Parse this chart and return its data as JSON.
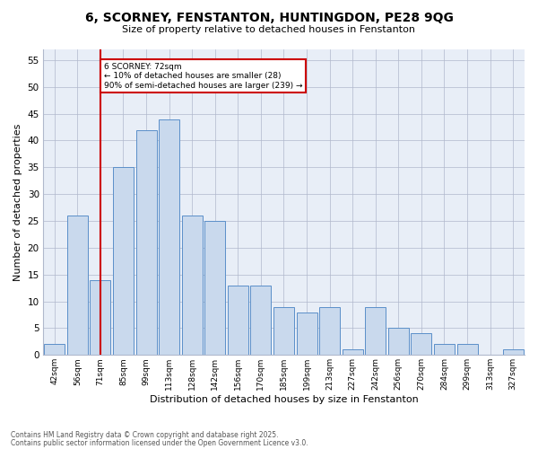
{
  "title_line1": "6, SCORNEY, FENSTANTON, HUNTINGDON, PE28 9QG",
  "title_line2": "Size of property relative to detached houses in Fenstanton",
  "xlabel": "Distribution of detached houses by size in Fenstanton",
  "ylabel": "Number of detached properties",
  "footer_line1": "Contains HM Land Registry data © Crown copyright and database right 2025.",
  "footer_line2": "Contains public sector information licensed under the Open Government Licence v3.0.",
  "annotation_title": "6 SCORNEY: 72sqm",
  "annotation_line2": "← 10% of detached houses are smaller (28)",
  "annotation_line3": "90% of semi-detached houses are larger (239) →",
  "bar_color": "#c9d9ed",
  "bar_edge_color": "#5b8fc9",
  "marker_line_color": "#cc0000",
  "annotation_box_color": "#cc0000",
  "plot_bg_color": "#e8eef7",
  "fig_bg_color": "#ffffff",
  "grid_color": "#b0b8cc",
  "categories": [
    "42sqm",
    "56sqm",
    "71sqm",
    "85sqm",
    "99sqm",
    "113sqm",
    "128sqm",
    "142sqm",
    "156sqm",
    "170sqm",
    "185sqm",
    "199sqm",
    "213sqm",
    "227sqm",
    "242sqm",
    "256sqm",
    "270sqm",
    "284sqm",
    "299sqm",
    "313sqm",
    "327sqm"
  ],
  "values": [
    2,
    26,
    14,
    35,
    42,
    44,
    26,
    25,
    13,
    13,
    9,
    8,
    9,
    1,
    9,
    5,
    4,
    2,
    2,
    0,
    1
  ],
  "marker_index": 2,
  "ylim": [
    0,
    57
  ],
  "yticks": [
    0,
    5,
    10,
    15,
    20,
    25,
    30,
    35,
    40,
    45,
    50,
    55
  ]
}
